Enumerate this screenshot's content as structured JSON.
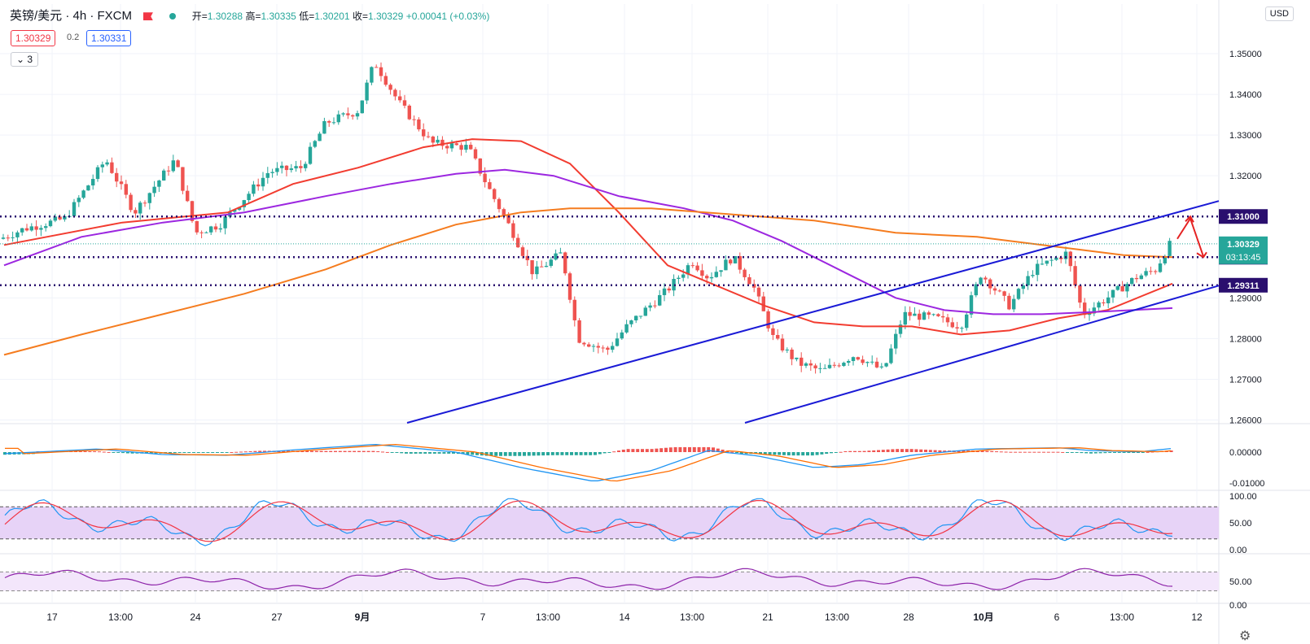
{
  "header": {
    "symbol": "英镑/美元 · 4h · FXCM",
    "open_label": "开=",
    "open": "1.30288",
    "high_label": "高=",
    "high": "1.30335",
    "low_label": "低=",
    "low": "1.30201",
    "close_label": "收=",
    "close": "1.30329",
    "change": "+0.00041 (+0.03%)",
    "bid": "1.30329",
    "spread": "0.2",
    "ask": "1.30331",
    "indicator_count": "3",
    "currency": "USD"
  },
  "colors": {
    "up": "#26a69a",
    "down": "#ef5350",
    "ma_red": "#f23c30",
    "ma_purple": "#9c27e0",
    "ma_orange": "#f57c1f",
    "trend": "#1a1ad6",
    "level": "#2a0f6e",
    "rsi_fill": "#e7d3f7"
  },
  "chart_data": {
    "type": "candlestick",
    "title": "英镑/美元 · 4h · FXCM",
    "price_axis": [
      "1.35000",
      "1.34000",
      "1.33000",
      "1.32000",
      "1.31000",
      "1.30000",
      "1.29000",
      "1.28000",
      "1.27000",
      "1.26000"
    ],
    "ylim": [
      1.2593,
      1.3542
    ],
    "x_tick_labels": [
      "17",
      "13:00",
      "24",
      "27",
      "9月",
      "7",
      "13:00",
      "14",
      "13:00",
      "21",
      "13:00",
      "28",
      "10月",
      "6",
      "13:00",
      "12"
    ],
    "horizontal_levels": [
      {
        "price": 1.31,
        "label": "1.31000"
      },
      {
        "price": 1.3,
        "label": "1.30000"
      },
      {
        "price": 1.29311,
        "label": "1.29311"
      }
    ],
    "last_price": {
      "price": 1.30329,
      "label": "1.30329",
      "countdown": "03:13:45"
    },
    "trendlines": [
      {
        "from": [
          0.0,
          1.26
        ],
        "to": [
          1.0,
          1.3138
        ]
      },
      {
        "from": [
          0.0,
          1.26
        ],
        "to": [
          1.0,
          1.293
        ]
      }
    ],
    "macd_axis": [
      "0.00000",
      "-0.01000"
    ],
    "stoch_axis": [
      "100.00",
      "50.00",
      "0.00"
    ],
    "rsi_axis": [
      "50.00",
      "0.00"
    ],
    "annotation": "red arrows near 1.31000 and 1.30000"
  }
}
